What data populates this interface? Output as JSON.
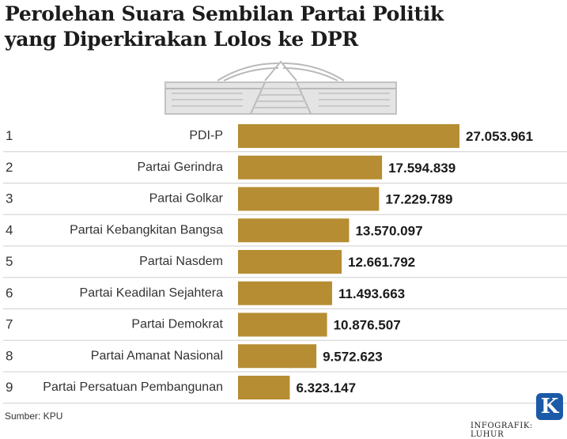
{
  "title_lines": [
    "Perolehan Suara Sembilan Partai Politik",
    "yang Diperkirakan Lolos ke DPR"
  ],
  "source": "Sumber: KPU",
  "credit": "INFOGRAFIK: LUHUR",
  "logo_letter": "K",
  "colors": {
    "bar": "#b68d33",
    "rule": "#cfcfcf",
    "building": "#d6d6d6"
  },
  "chart_data": {
    "type": "bar",
    "orientation": "horizontal",
    "ranks": [
      "1",
      "2",
      "3",
      "4",
      "5",
      "6",
      "7",
      "8",
      "9"
    ],
    "categories": [
      "PDI-P",
      "Partai Gerindra",
      "Partai Golkar",
      "Partai Kebangkitan Bangsa",
      "Partai Nasdem",
      "Partai Keadilan Sejahtera",
      "Partai Demokrat",
      "Partai Amanat Nasional",
      "Partai Persatuan Pembangunan"
    ],
    "values": [
      27053961,
      17594839,
      17229789,
      13570097,
      12661792,
      11493663,
      10876507,
      9572623,
      6323147
    ],
    "value_labels": [
      "27.053.961",
      "17.594.839",
      "17.229.789",
      "13.570.097",
      "12.661.792",
      "11.493.663",
      "10.876.507",
      "9.572.623",
      "6.323.147"
    ],
    "xlim": [
      0,
      27053961
    ],
    "grid": false,
    "legend": "none"
  }
}
